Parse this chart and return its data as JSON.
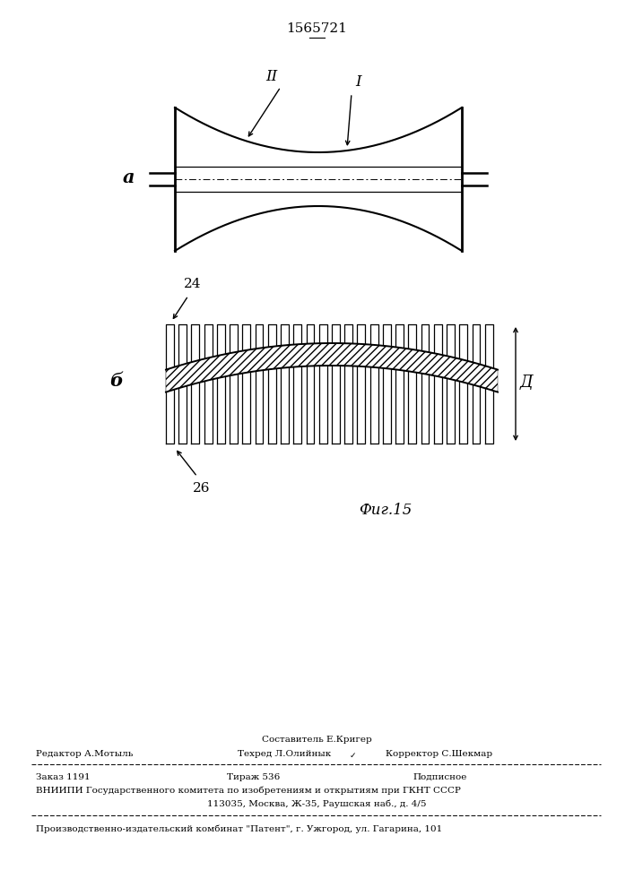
{
  "title_text": "1565721",
  "bg_color": "#ffffff",
  "label_a": "a",
  "label_b": "б",
  "label_I": "I",
  "label_II": "II",
  "label_24": "24",
  "label_26": "26",
  "label_D": "Д",
  "label_fig": "Фиг.15",
  "footer_sostavitel": "Составитель Е.Кригер",
  "footer_redaktor": "Редактор А.Мотыль",
  "footer_tehred": "Техред Л.Олийнык",
  "footer_korrektor": "Корректор С.Шекмар",
  "footer_zakaz": "Заказ 1191",
  "footer_tirazh": "Тираж 536",
  "footer_podpisnoe": "Подписное",
  "footer_vniipи": "ВНИИПИ Государственного комитета по изобретениям и открытиям при ГКНТ СССР",
  "footer_address": "113035, Москва, Ж-35, Раушская наб., д. 4/5",
  "footer_proizv": "Производственно-издательский комбинат \"Патент\", г. Ужгород, ул. Гагарина, 101"
}
